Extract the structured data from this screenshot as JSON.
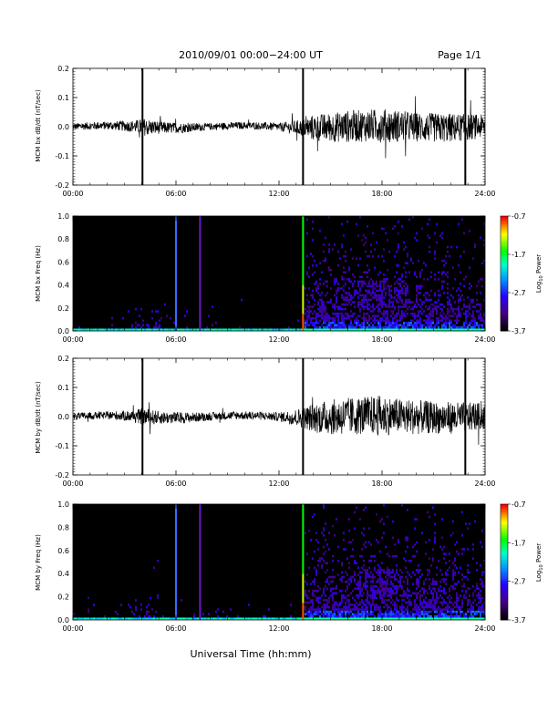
{
  "header": {
    "title": "2010/09/01  00:00−24:00 UT",
    "page": "Page 1/1"
  },
  "footer": {
    "xlabel": "Universal Time (hh:mm)"
  },
  "chart_data": [
    {
      "type": "line",
      "id": "bx_dbdt",
      "ylabel": "MCM bx dB/dt (nT/sec)",
      "xlim": [
        0,
        24
      ],
      "ylim": [
        -0.2,
        0.2
      ],
      "x_ticks": [
        "00:00",
        "06:00",
        "12:00",
        "18:00",
        "24:00"
      ],
      "y_ticks": [
        "0.2",
        "0.1",
        "0.0",
        "-0.1",
        "-0.2"
      ],
      "envelope_x": [
        0,
        2,
        3.5,
        4.2,
        5,
        6,
        8,
        10,
        12,
        13.4,
        14,
        15,
        16,
        17,
        18,
        19,
        20,
        21,
        22,
        23,
        24
      ],
      "envelope_amp": [
        0.012,
        0.014,
        0.02,
        0.03,
        0.022,
        0.018,
        0.012,
        0.012,
        0.014,
        0.03,
        0.045,
        0.05,
        0.055,
        0.055,
        0.058,
        0.055,
        0.05,
        0.05,
        0.05,
        0.045,
        0.04
      ],
      "spikes": [
        {
          "x": 4.05,
          "ymin": -0.2,
          "ymax": 0.2
        },
        {
          "x": 13.4,
          "ymin": -0.2,
          "ymax": 0.2
        },
        {
          "x": 22.85,
          "ymin": -0.2,
          "ymax": 0.2
        }
      ]
    },
    {
      "type": "heatmap",
      "id": "bx_spec",
      "ylabel": "MCM bx Freq (Hz)",
      "xlim": [
        0,
        24
      ],
      "ylim": [
        0,
        1.0
      ],
      "x_ticks": [
        "00:00",
        "06:00",
        "12:00",
        "18:00",
        "24:00"
      ],
      "y_ticks": [
        "1.0",
        "0.8",
        "0.6",
        "0.4",
        "0.2",
        "0.0"
      ],
      "colorbar": {
        "label": "Log10 Power",
        "ticks": [
          "-0.7",
          "-1.7",
          "-2.7",
          "-3.7"
        ],
        "min": -3.7,
        "max": -0.7
      },
      "lines": [
        {
          "x": 6.0,
          "color": "#2f6fff"
        },
        {
          "x": 7.4,
          "color": "#6a18c8"
        },
        {
          "x": 13.4,
          "color": "#30ff30"
        }
      ]
    },
    {
      "type": "line",
      "id": "by_dbdt",
      "ylabel": "MCM by dB/dt (nT/sec)",
      "xlim": [
        0,
        24
      ],
      "ylim": [
        -0.2,
        0.2
      ],
      "x_ticks": [
        "00:00",
        "06:00",
        "12:00",
        "18:00",
        "24:00"
      ],
      "y_ticks": [
        "0.2",
        "0.1",
        "0.0",
        "-0.1",
        "-0.2"
      ],
      "envelope_x": [
        0,
        2,
        3.5,
        4.2,
        5,
        6,
        8,
        10,
        12,
        13.4,
        14,
        15,
        16,
        17,
        18,
        19,
        20,
        21,
        22,
        23,
        24
      ],
      "envelope_amp": [
        0.012,
        0.013,
        0.02,
        0.03,
        0.022,
        0.02,
        0.014,
        0.014,
        0.015,
        0.035,
        0.05,
        0.06,
        0.065,
        0.065,
        0.07,
        0.06,
        0.06,
        0.055,
        0.055,
        0.05,
        0.045
      ],
      "spikes": [
        {
          "x": 4.05,
          "ymin": -0.2,
          "ymax": 0.2
        },
        {
          "x": 13.4,
          "ymin": -0.2,
          "ymax": 0.2
        },
        {
          "x": 22.85,
          "ymin": -0.2,
          "ymax": 0.2
        }
      ]
    },
    {
      "type": "heatmap",
      "id": "by_spec",
      "ylabel": "MCM by Freq (Hz)",
      "xlim": [
        0,
        24
      ],
      "ylim": [
        0,
        1.0
      ],
      "x_ticks": [
        "00:00",
        "06:00",
        "12:00",
        "18:00",
        "24:00"
      ],
      "y_ticks": [
        "1.0",
        "0.8",
        "0.6",
        "0.4",
        "0.2",
        "0.0"
      ],
      "colorbar": {
        "label": "Log10 Power",
        "ticks": [
          "-0.7",
          "-1.7",
          "-2.7",
          "-3.7"
        ],
        "min": -3.7,
        "max": -0.7
      },
      "lines": [
        {
          "x": 6.0,
          "color": "#2f6fff"
        },
        {
          "x": 7.4,
          "color": "#6a18c8"
        },
        {
          "x": 13.4,
          "color": "#30ff30"
        }
      ]
    }
  ]
}
